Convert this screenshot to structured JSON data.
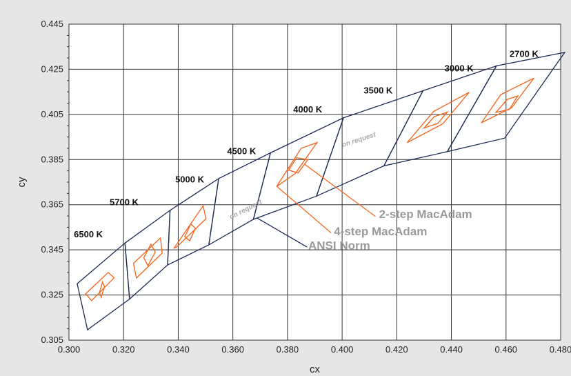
{
  "chart_data": {
    "type": "scatter",
    "title": "",
    "xlabel": "cx",
    "ylabel": "cy",
    "xlim": [
      0.3,
      0.48
    ],
    "ylim": [
      0.305,
      0.445
    ],
    "x_ticks": [
      "0.300",
      "0.320",
      "0.340",
      "0.360",
      "0.380",
      "0.400",
      "0.420",
      "0.440",
      "0.460",
      "0.480"
    ],
    "y_ticks": [
      "0.305",
      "0.325",
      "0.345",
      "0.365",
      "0.385",
      "0.405",
      "0.425",
      "0.445"
    ],
    "grid": true,
    "colors": {
      "ansi": "#1b2a52",
      "macadam": "#f26a21",
      "grid": "#333333",
      "plot_background": "#ffffff",
      "page_background": "#e6e6e6",
      "callout_text": "#9a9a9a"
    },
    "ansi_envelope": {
      "name": "ANSI Norm",
      "upper": [
        [
          0.303,
          0.33
        ],
        [
          0.3205,
          0.348
        ],
        [
          0.337,
          0.3625
        ],
        [
          0.3548,
          0.3766
        ],
        [
          0.3738,
          0.388
        ],
        [
          0.4005,
          0.4035
        ],
        [
          0.4296,
          0.4155
        ],
        [
          0.4565,
          0.4265
        ],
        [
          0.4815,
          0.4325
        ]
      ],
      "lower": [
        [
          0.3068,
          0.3096
        ],
        [
          0.3222,
          0.3232
        ],
        [
          0.3361,
          0.3383
        ],
        [
          0.3512,
          0.3472
        ],
        [
          0.3675,
          0.3585
        ],
        [
          0.3906,
          0.3688
        ],
        [
          0.4153,
          0.3822
        ],
        [
          0.4385,
          0.3885
        ],
        [
          0.4595,
          0.3945
        ]
      ]
    },
    "ansi_quads": [
      {
        "cct": "6500 K",
        "corners": [
          [
            0.303,
            0.33
          ],
          [
            0.3205,
            0.348
          ],
          [
            0.3222,
            0.3232
          ],
          [
            0.3068,
            0.3096
          ]
        ]
      },
      {
        "cct": "5700 K",
        "corners": [
          [
            0.3205,
            0.348
          ],
          [
            0.337,
            0.3625
          ],
          [
            0.3361,
            0.3383
          ],
          [
            0.3222,
            0.3232
          ]
        ]
      },
      {
        "cct": "5000 K",
        "corners": [
          [
            0.337,
            0.3625
          ],
          [
            0.3548,
            0.3766
          ],
          [
            0.3512,
            0.3472
          ],
          [
            0.3361,
            0.3383
          ]
        ]
      },
      {
        "cct": "4500 K",
        "corners": [
          [
            0.3548,
            0.3766
          ],
          [
            0.3738,
            0.388
          ],
          [
            0.3675,
            0.3585
          ],
          [
            0.3512,
            0.3472
          ]
        ]
      },
      {
        "cct": "4000 K",
        "corners": [
          [
            0.3738,
            0.388
          ],
          [
            0.4005,
            0.4035
          ],
          [
            0.3906,
            0.3688
          ],
          [
            0.3675,
            0.3585
          ]
        ]
      },
      {
        "cct": "3500 K",
        "corners": [
          [
            0.4005,
            0.4035
          ],
          [
            0.4296,
            0.4155
          ],
          [
            0.4153,
            0.3822
          ],
          [
            0.3906,
            0.3688
          ]
        ]
      },
      {
        "cct": "3000 K",
        "corners": [
          [
            0.4296,
            0.4155
          ],
          [
            0.4565,
            0.4265
          ],
          [
            0.4385,
            0.3885
          ],
          [
            0.4153,
            0.3822
          ]
        ]
      },
      {
        "cct": "2700 K",
        "corners": [
          [
            0.4565,
            0.4265
          ],
          [
            0.4815,
            0.4325
          ],
          [
            0.4595,
            0.3945
          ],
          [
            0.4385,
            0.3885
          ]
        ]
      }
    ],
    "macadam_4step": [
      {
        "cct": "6500 K",
        "corners": [
          [
            0.3061,
            0.3255
          ],
          [
            0.3144,
            0.335
          ],
          [
            0.3165,
            0.3326
          ],
          [
            0.3083,
            0.3225
          ]
        ]
      },
      {
        "cct": "5700 K",
        "corners": [
          [
            0.3236,
            0.339
          ],
          [
            0.3335,
            0.3503
          ],
          [
            0.3341,
            0.3435
          ],
          [
            0.3247,
            0.3325
          ]
        ]
      },
      {
        "cct": "5000 K",
        "corners": [
          [
            0.3385,
            0.3458
          ],
          [
            0.3491,
            0.3645
          ],
          [
            0.3502,
            0.3588
          ],
          [
            0.3392,
            0.346
          ]
        ]
      },
      {
        "cct": "4000 K",
        "corners": [
          [
            0.376,
            0.373
          ],
          [
            0.385,
            0.39
          ],
          [
            0.3908,
            0.3925
          ],
          [
            0.3828,
            0.3788
          ]
        ]
      },
      {
        "cct": "3000 K",
        "corners": [
          [
            0.4238,
            0.3925
          ],
          [
            0.4335,
            0.4063
          ],
          [
            0.4465,
            0.4148
          ],
          [
            0.4368,
            0.4008
          ]
        ]
      },
      {
        "cct": "2700 K",
        "corners": [
          [
            0.451,
            0.4013
          ],
          [
            0.4581,
            0.4138
          ],
          [
            0.4702,
            0.4211
          ],
          [
            0.4621,
            0.408
          ]
        ]
      }
    ],
    "macadam_2step": [
      {
        "cct": "6500 K",
        "corners": [
          [
            0.3112,
            0.3262
          ],
          [
            0.3123,
            0.3308
          ],
          [
            0.313,
            0.3286
          ],
          [
            0.3118,
            0.324
          ]
        ]
      },
      {
        "cct": "5700 K",
        "corners": [
          [
            0.3274,
            0.3415
          ],
          [
            0.33,
            0.3475
          ],
          [
            0.3316,
            0.344
          ],
          [
            0.3289,
            0.338
          ]
        ]
      },
      {
        "cct": "5000 K",
        "corners": [
          [
            0.3424,
            0.3508
          ],
          [
            0.3446,
            0.3565
          ],
          [
            0.3463,
            0.3545
          ],
          [
            0.3442,
            0.349
          ]
        ]
      },
      {
        "cct": "4000 K",
        "corners": [
          [
            0.3804,
            0.3803
          ],
          [
            0.3833,
            0.3858
          ],
          [
            0.3875,
            0.385
          ],
          [
            0.3839,
            0.3791
          ]
        ]
      },
      {
        "cct": "3000 K",
        "corners": [
          [
            0.43,
            0.399
          ],
          [
            0.4337,
            0.404
          ],
          [
            0.4385,
            0.406
          ],
          [
            0.435,
            0.401
          ]
        ]
      },
      {
        "cct": "2700 K",
        "corners": [
          [
            0.4563,
            0.4059
          ],
          [
            0.4605,
            0.4117
          ],
          [
            0.4643,
            0.4132
          ],
          [
            0.4612,
            0.4072
          ]
        ]
      }
    ],
    "cct_labels": [
      {
        "text": "6500 K",
        "at": [
          0.3018,
          0.3505
        ]
      },
      {
        "text": "5700 K",
        "at": [
          0.3149,
          0.3648
        ]
      },
      {
        "text": "5000 K",
        "at": [
          0.3389,
          0.3749
        ]
      },
      {
        "text": "4500 K",
        "at": [
          0.3579,
          0.3874
        ]
      },
      {
        "text": "4000 K",
        "at": [
          0.3821,
          0.4059
        ]
      },
      {
        "text": "3500 K",
        "at": [
          0.4079,
          0.4143
        ]
      },
      {
        "text": "3000 K",
        "at": [
          0.4375,
          0.4241
        ]
      },
      {
        "text": "2700 K",
        "at": [
          0.4613,
          0.4305
        ]
      }
    ],
    "annotations": [
      {
        "text": "on request",
        "at": [
          0.3593,
          0.3585
        ],
        "angle": -27
      },
      {
        "text": "on request",
        "at": [
          0.4002,
          0.3905
        ],
        "angle": -18
      }
    ],
    "callouts": [
      {
        "text": "2-step MacAdam",
        "text_at": [
          0.4135,
          0.3591
        ],
        "line_from": [
          0.3862,
          0.383
        ],
        "line_to": [
          0.4122,
          0.3598
        ]
      },
      {
        "text": "4-step MacAdam",
        "text_at": [
          0.397,
          0.3515
        ],
        "line_from": [
          0.3762,
          0.373
        ],
        "line_to": [
          0.396,
          0.3525
        ]
      },
      {
        "text": "ANSI Norm",
        "text_at": [
          0.3876,
          0.3452
        ],
        "line_from": [
          0.369,
          0.359
        ],
        "line_to": [
          0.3872,
          0.3462
        ]
      }
    ]
  }
}
